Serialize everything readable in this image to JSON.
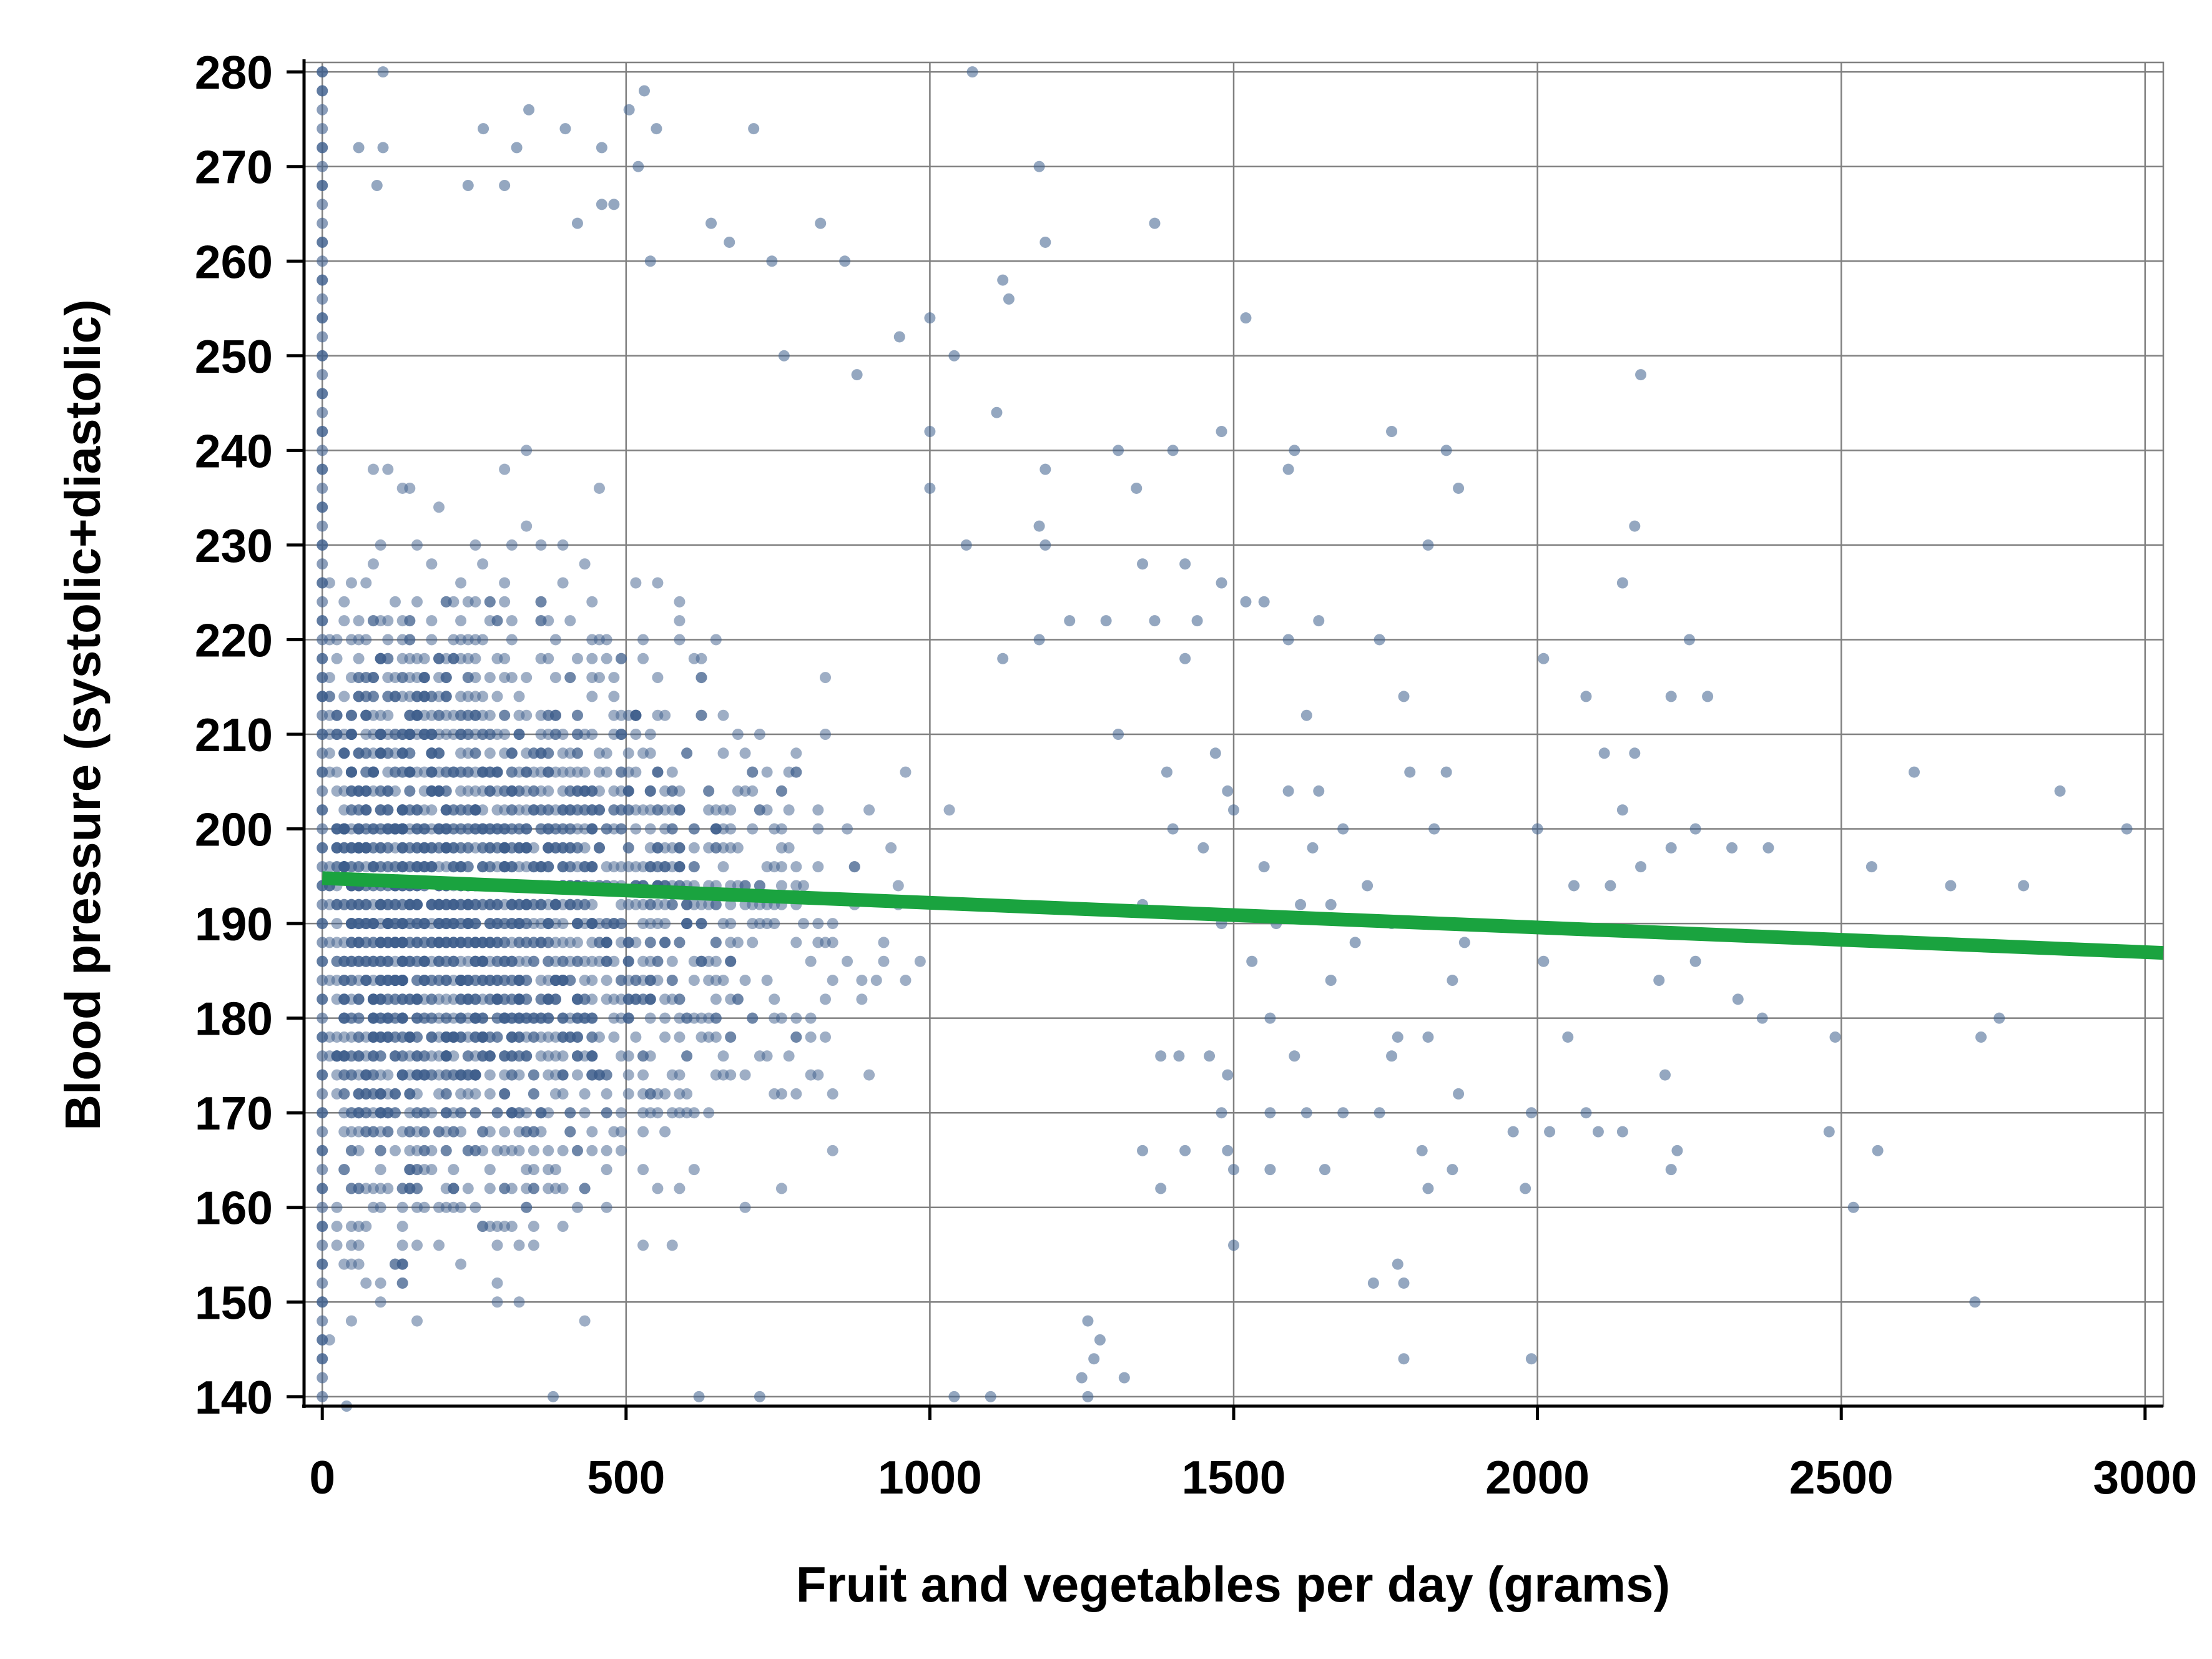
{
  "chart_data": {
    "type": "scatter",
    "title": "",
    "xlabel": "Fruit and vegetables per day (grams)",
    "ylabel": "Blood pressure (systolic+diastolic)",
    "xlim": [
      -30,
      3030
    ],
    "ylim": [
      139,
      281
    ],
    "x_ticks": [
      0,
      500,
      1000,
      1500,
      2000,
      2500,
      3000
    ],
    "x_tick_labels": [
      "0",
      "500",
      "1000",
      "1500",
      "2000",
      "2500",
      "3000"
    ],
    "y_ticks": [
      140,
      150,
      160,
      170,
      180,
      190,
      200,
      210,
      220,
      230,
      240,
      250,
      260,
      270,
      280
    ],
    "y_tick_labels": [
      "140",
      "150",
      "160",
      "170",
      "180",
      "190",
      "200",
      "210",
      "220",
      "230",
      "240",
      "250",
      "260",
      "270",
      "280"
    ],
    "grid": true,
    "colors": {
      "points": "#3d5e8c",
      "fit_line": "#1aa33f",
      "grid": "#808080",
      "axis": "#000000"
    },
    "series": [
      {
        "type": "scatter",
        "points": [
          [
            0,
            280
          ],
          [
            0,
            278
          ],
          [
            0,
            272
          ],
          [
            0,
            268
          ],
          [
            0,
            262
          ],
          [
            0,
            258
          ],
          [
            0,
            254
          ],
          [
            0,
            250
          ],
          [
            0,
            246
          ],
          [
            0,
            242
          ],
          [
            0,
            238
          ],
          [
            0,
            234
          ],
          [
            0,
            230
          ],
          [
            0,
            226
          ],
          [
            0,
            222
          ],
          [
            0,
            218
          ],
          [
            0,
            214
          ],
          [
            0,
            210
          ],
          [
            0,
            206
          ],
          [
            0,
            202
          ],
          [
            0,
            198
          ],
          [
            0,
            194
          ],
          [
            0,
            190
          ],
          [
            0,
            186
          ],
          [
            0,
            182
          ],
          [
            0,
            178
          ],
          [
            0,
            174
          ],
          [
            0,
            170
          ],
          [
            0,
            166
          ],
          [
            0,
            162
          ],
          [
            0,
            158
          ],
          [
            0,
            154
          ],
          [
            0,
            150
          ],
          [
            0,
            146
          ],
          [
            0,
            144
          ],
          [
            100,
            280
          ],
          [
            1070,
            280
          ],
          [
            530,
            278
          ],
          [
            505,
            276
          ],
          [
            340,
            276
          ],
          [
            400,
            274
          ],
          [
            550,
            274
          ],
          [
            710,
            274
          ],
          [
            265,
            274
          ],
          [
            320,
            272
          ],
          [
            60,
            272
          ],
          [
            100,
            272
          ],
          [
            460,
            272
          ],
          [
            520,
            270
          ],
          [
            1180,
            270
          ],
          [
            240,
            268
          ],
          [
            300,
            268
          ],
          [
            90,
            268
          ],
          [
            460,
            266
          ],
          [
            480,
            266
          ],
          [
            420,
            264
          ],
          [
            640,
            264
          ],
          [
            820,
            264
          ],
          [
            1370,
            264
          ],
          [
            1190,
            262
          ],
          [
            670,
            262
          ],
          [
            740,
            260
          ],
          [
            540,
            260
          ],
          [
            860,
            260
          ],
          [
            1520,
            254
          ],
          [
            1130,
            256
          ],
          [
            1120,
            258
          ],
          [
            1000,
            254
          ],
          [
            950,
            252
          ],
          [
            1040,
            250
          ],
          [
            880,
            248
          ],
          [
            760,
            250
          ],
          [
            2170,
            248
          ],
          [
            1110,
            244
          ],
          [
            1000,
            242
          ],
          [
            1480,
            242
          ],
          [
            1760,
            242
          ],
          [
            1850,
            240
          ],
          [
            1600,
            240
          ],
          [
            1400,
            240
          ],
          [
            1310,
            240
          ],
          [
            1590,
            238
          ],
          [
            1190,
            238
          ],
          [
            1870,
            236
          ],
          [
            1340,
            236
          ],
          [
            1000,
            236
          ],
          [
            1180,
            232
          ],
          [
            2160,
            232
          ],
          [
            1060,
            230
          ],
          [
            1190,
            230
          ],
          [
            1820,
            230
          ],
          [
            1420,
            228
          ],
          [
            1350,
            228
          ],
          [
            1480,
            226
          ],
          [
            2140,
            226
          ],
          [
            1550,
            224
          ],
          [
            1520,
            224
          ],
          [
            1640,
            222
          ],
          [
            1230,
            222
          ],
          [
            1290,
            222
          ],
          [
            1370,
            222
          ],
          [
            1440,
            222
          ],
          [
            1740,
            220
          ],
          [
            1590,
            220
          ],
          [
            2250,
            220
          ],
          [
            1180,
            220
          ],
          [
            1420,
            218
          ],
          [
            2010,
            218
          ],
          [
            1120,
            218
          ],
          [
            2080,
            214
          ],
          [
            2220,
            214
          ],
          [
            2280,
            214
          ],
          [
            1780,
            214
          ],
          [
            1620,
            212
          ],
          [
            2110,
            208
          ],
          [
            2160,
            208
          ],
          [
            1310,
            210
          ],
          [
            1470,
            208
          ],
          [
            1390,
            206
          ],
          [
            1790,
            206
          ],
          [
            1850,
            206
          ],
          [
            2620,
            206
          ],
          [
            1490,
            204
          ],
          [
            1640,
            204
          ],
          [
            1590,
            204
          ],
          [
            2860,
            204
          ],
          [
            1500,
            202
          ],
          [
            2140,
            202
          ],
          [
            1680,
            200
          ],
          [
            2000,
            200
          ],
          [
            1400,
            200
          ],
          [
            1830,
            200
          ],
          [
            2260,
            200
          ],
          [
            2970,
            200
          ],
          [
            1450,
            198
          ],
          [
            1630,
            198
          ],
          [
            2220,
            198
          ],
          [
            2320,
            198
          ],
          [
            2380,
            198
          ],
          [
            1550,
            196
          ],
          [
            2170,
            196
          ],
          [
            2550,
            196
          ],
          [
            1720,
            194
          ],
          [
            2060,
            194
          ],
          [
            2120,
            194
          ],
          [
            2680,
            194
          ],
          [
            2800,
            194
          ],
          [
            1610,
            192
          ],
          [
            1660,
            192
          ],
          [
            1350,
            192
          ],
          [
            1480,
            190
          ],
          [
            1570,
            190
          ],
          [
            1760,
            190
          ],
          [
            1880,
            188
          ],
          [
            1700,
            188
          ],
          [
            2010,
            186
          ],
          [
            2260,
            186
          ],
          [
            1860,
            184
          ],
          [
            1660,
            184
          ],
          [
            2200,
            184
          ],
          [
            1530,
            186
          ],
          [
            2330,
            182
          ],
          [
            1770,
            178
          ],
          [
            1820,
            178
          ],
          [
            2050,
            178
          ],
          [
            2370,
            180
          ],
          [
            2490,
            178
          ],
          [
            2730,
            178
          ],
          [
            2760,
            180
          ],
          [
            1560,
            180
          ],
          [
            1600,
            176
          ],
          [
            1490,
            174
          ],
          [
            1760,
            176
          ],
          [
            2210,
            174
          ],
          [
            1870,
            172
          ],
          [
            1410,
            176
          ],
          [
            1380,
            176
          ],
          [
            1460,
            176
          ],
          [
            1620,
            170
          ],
          [
            1680,
            170
          ],
          [
            1560,
            170
          ],
          [
            1480,
            170
          ],
          [
            2080,
            170
          ],
          [
            1990,
            170
          ],
          [
            1740,
            170
          ],
          [
            2020,
            168
          ],
          [
            2100,
            168
          ],
          [
            2140,
            168
          ],
          [
            2480,
            168
          ],
          [
            1960,
            168
          ],
          [
            1420,
            166
          ],
          [
            1490,
            166
          ],
          [
            1810,
            166
          ],
          [
            2230,
            166
          ],
          [
            2560,
            166
          ],
          [
            1860,
            164
          ],
          [
            1650,
            164
          ],
          [
            1500,
            164
          ],
          [
            1560,
            164
          ],
          [
            2220,
            164
          ],
          [
            1820,
            162
          ],
          [
            1980,
            162
          ],
          [
            1380,
            162
          ],
          [
            1350,
            166
          ],
          [
            1500,
            156
          ],
          [
            2520,
            160
          ],
          [
            1770,
            154
          ],
          [
            1730,
            152
          ],
          [
            1780,
            152
          ],
          [
            2720,
            150
          ],
          [
            1260,
            148
          ],
          [
            1280,
            146
          ],
          [
            1270,
            144
          ],
          [
            1780,
            144
          ],
          [
            1990,
            144
          ],
          [
            1320,
            142
          ],
          [
            1250,
            142
          ],
          [
            1260,
            140
          ],
          [
            1100,
            140
          ],
          [
            1040,
            140
          ],
          [
            720,
            140
          ],
          [
            620,
            140
          ],
          [
            380,
            140
          ],
          [
            40,
            139
          ]
        ]
      },
      {
        "type": "line",
        "points": [
          [
            0,
            194.8
          ],
          [
            3030,
            186.9
          ]
        ]
      }
    ]
  }
}
